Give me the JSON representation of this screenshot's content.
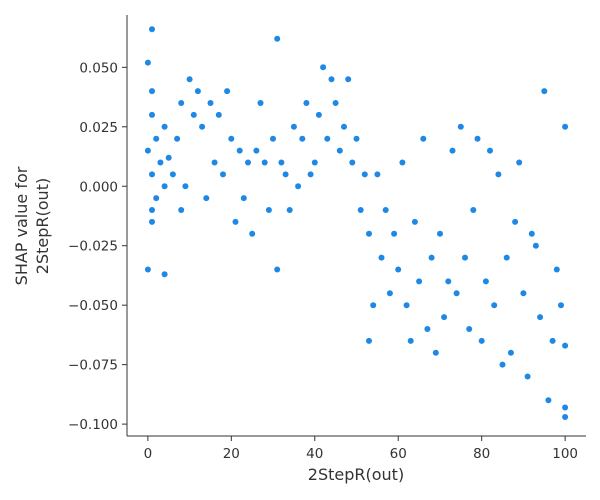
{
  "chart_data": {
    "type": "scatter",
    "xlabel": "2StepR(out)",
    "ylabel_lines": [
      "SHAP value for",
      "2StepR(out)"
    ],
    "xlim": [
      -5,
      105
    ],
    "ylim": [
      -0.105,
      0.072
    ],
    "xticks": [
      0,
      20,
      40,
      60,
      80,
      100
    ],
    "xtick_labels": [
      "0",
      "20",
      "40",
      "60",
      "80",
      "100"
    ],
    "yticks": [
      0.05,
      0.025,
      0.0,
      -0.025,
      -0.05,
      -0.075,
      -0.1
    ],
    "ytick_labels": [
      "0.050",
      "0.025",
      "0.000",
      "−0.025",
      "−0.050",
      "−0.075",
      "−0.100"
    ],
    "grid": false,
    "point_color": "#1e88e5",
    "series": [
      {
        "x": [
          0,
          0,
          0,
          1,
          1,
          1,
          1,
          1,
          1,
          2,
          2,
          3,
          4,
          4,
          4,
          5,
          6,
          7,
          8,
          8,
          9,
          10,
          11,
          12,
          13,
          14,
          15,
          16,
          17,
          18,
          19,
          20,
          21,
          22,
          23,
          24,
          25,
          26,
          27,
          28,
          29,
          30,
          31,
          31,
          32,
          33,
          34,
          35,
          36,
          37,
          38,
          39,
          40,
          41,
          42,
          43,
          44,
          45,
          46,
          47,
          48,
          49,
          50,
          51,
          52,
          53,
          53,
          54,
          55,
          56,
          57,
          58,
          59,
          60,
          61,
          62,
          63,
          64,
          65,
          66,
          67,
          68,
          69,
          70,
          71,
          72,
          73,
          74,
          75,
          76,
          77,
          78,
          79,
          80,
          81,
          82,
          83,
          84,
          85,
          86,
          87,
          88,
          89,
          90,
          91,
          92,
          93,
          94,
          95,
          96,
          97,
          98,
          99,
          100,
          100,
          100,
          100
        ],
        "y": [
          0.052,
          0.015,
          -0.035,
          0.066,
          0.03,
          0.005,
          -0.01,
          -0.015,
          0.04,
          0.02,
          -0.005,
          0.01,
          -0.037,
          0.0,
          0.025,
          0.012,
          0.005,
          0.02,
          0.035,
          -0.01,
          0.0,
          0.045,
          0.03,
          0.04,
          0.025,
          -0.005,
          0.035,
          0.01,
          0.03,
          0.005,
          0.04,
          0.02,
          -0.015,
          0.015,
          -0.005,
          0.01,
          -0.02,
          0.015,
          0.035,
          0.01,
          -0.01,
          0.02,
          0.062,
          -0.035,
          0.01,
          0.005,
          -0.01,
          0.025,
          0.0,
          0.02,
          0.035,
          0.005,
          0.01,
          0.03,
          0.05,
          0.02,
          0.045,
          0.035,
          0.015,
          0.025,
          0.045,
          0.01,
          0.02,
          -0.01,
          0.005,
          -0.065,
          -0.02,
          -0.05,
          0.005,
          -0.03,
          -0.01,
          -0.045,
          -0.02,
          -0.035,
          0.01,
          -0.05,
          -0.065,
          -0.015,
          -0.04,
          0.02,
          -0.06,
          -0.03,
          -0.07,
          -0.02,
          -0.055,
          -0.04,
          0.015,
          -0.045,
          0.025,
          -0.03,
          -0.06,
          -0.01,
          0.02,
          -0.065,
          -0.04,
          0.015,
          -0.05,
          0.005,
          -0.075,
          -0.03,
          -0.07,
          -0.015,
          0.01,
          -0.045,
          -0.08,
          -0.02,
          -0.025,
          -0.055,
          0.04,
          -0.09,
          -0.065,
          -0.035,
          -0.05,
          0.025,
          -0.093,
          -0.067,
          -0.097
        ]
      }
    ]
  }
}
